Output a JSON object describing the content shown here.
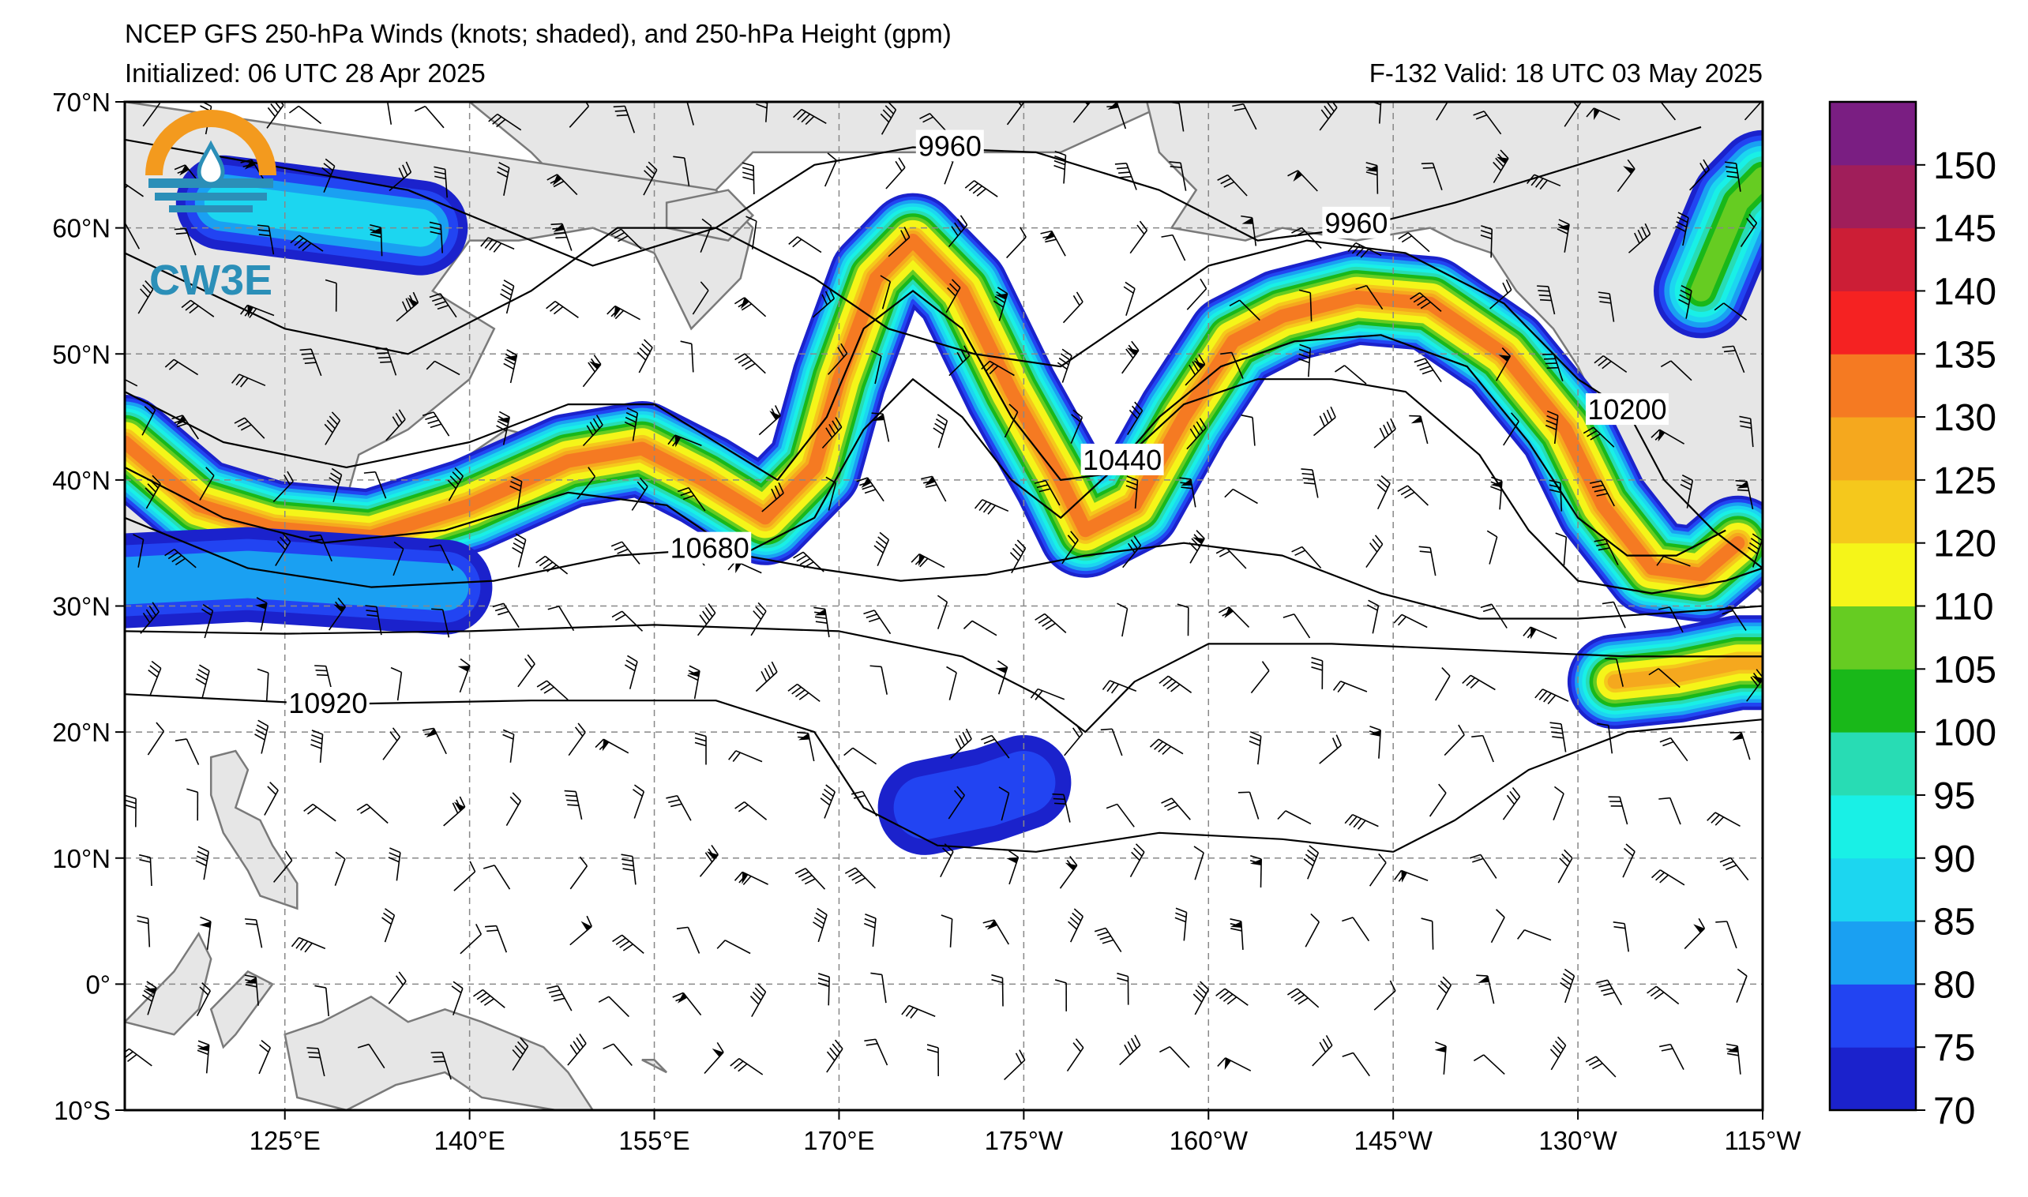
{
  "header": {
    "title": "NCEP GFS 250-hPa Winds (knots; shaded), and 250-hPa Height (gpm)",
    "initialized": "Initialized: 06 UTC 28 Apr 2025",
    "valid": "F-132  Valid: 18 UTC 03 May 2025"
  },
  "logo": {
    "text": "CW3E",
    "icon": "water-drop-sun-logo-icon"
  },
  "map": {
    "projection": "equidistant-cylindrical",
    "lon_range": [
      112,
      245
    ],
    "lat_range": [
      -10,
      70
    ],
    "grid": true,
    "lat_labels": [
      "70°N",
      "60°N",
      "50°N",
      "40°N",
      "30°N",
      "20°N",
      "10°N",
      "0°",
      "10°S"
    ],
    "lat_values": [
      70,
      60,
      50,
      40,
      30,
      20,
      10,
      0,
      -10
    ],
    "lon_labels": [
      "125°E",
      "140°E",
      "155°E",
      "170°E",
      "175°W",
      "160°W",
      "145°W",
      "130°W",
      "115°W"
    ],
    "lon_values": [
      125,
      140,
      155,
      170,
      185,
      200,
      215,
      230,
      245
    ]
  },
  "height_contours": {
    "units": "gpm",
    "labels": [
      {
        "text": "9960",
        "lon": 179,
        "lat": 66.4
      },
      {
        "text": "9960",
        "lon": 212,
        "lat": 60.3
      },
      {
        "text": "10200",
        "lon": 234,
        "lat": 45.5
      },
      {
        "text": "10440",
        "lon": 193,
        "lat": 41.5
      },
      {
        "text": "10680",
        "lon": 159.5,
        "lat": 34.5
      },
      {
        "text": "10920",
        "lon": 128.5,
        "lat": 22.2
      }
    ]
  },
  "colorbar": {
    "units": "knots",
    "bounds": [
      70,
      75,
      80,
      85,
      90,
      95,
      100,
      105,
      110,
      120,
      125,
      130,
      135,
      140,
      145,
      150,
      155
    ],
    "labels": [
      "70",
      "75",
      "80",
      "85",
      "90",
      "95",
      "100",
      "105",
      "110",
      "120",
      "125",
      "130",
      "135",
      "140",
      "145",
      "150"
    ],
    "colors": [
      "#1b22cc",
      "#2244f2",
      "#1aa0f2",
      "#1cd6f0",
      "#19f0e6",
      "#28dcb4",
      "#19b819",
      "#66cc22",
      "#f5f519",
      "#f5c81c",
      "#f5a81e",
      "#f57a22",
      "#f52222",
      "#cc1e36",
      "#a01e5a",
      "#7a1e82"
    ]
  },
  "jet_segments": [
    {
      "name": "north-pacific-jet",
      "peak": 130,
      "points": [
        [
          112,
          43
        ],
        [
          118,
          38
        ],
        [
          124,
          36.2
        ],
        [
          132,
          35.5
        ],
        [
          140,
          38
        ],
        [
          148,
          41.5
        ],
        [
          154,
          42.5
        ],
        [
          159,
          40
        ],
        [
          164,
          37
        ],
        [
          168,
          41
        ],
        [
          170,
          48
        ],
        [
          173,
          56
        ],
        [
          176,
          59
        ],
        [
          180,
          55
        ],
        [
          184,
          47
        ],
        [
          188,
          40
        ],
        [
          190,
          36
        ],
        [
          194,
          38
        ],
        [
          198,
          45
        ],
        [
          202,
          51
        ],
        [
          206,
          53
        ],
        [
          212,
          54.5
        ],
        [
          218,
          54
        ],
        [
          224,
          50
        ],
        [
          229,
          44
        ],
        [
          232,
          38
        ],
        [
          236,
          33
        ],
        [
          240,
          32.5
        ],
        [
          243,
          35
        ]
      ]
    },
    {
      "name": "western-jet-entrance",
      "peak": 85,
      "points": [
        [
          120,
          62
        ],
        [
          128,
          61
        ],
        [
          136,
          60
        ]
      ]
    },
    {
      "name": "gulf-of-alaska-branch",
      "peak": 105,
      "points": [
        [
          240,
          55
        ],
        [
          243,
          62
        ],
        [
          245,
          64
        ]
      ]
    },
    {
      "name": "subtropical-jet-west",
      "peak": 80,
      "points": [
        [
          112,
          32
        ],
        [
          122,
          32.5
        ],
        [
          130,
          32
        ],
        [
          138,
          31.5
        ]
      ]
    },
    {
      "name": "subtropical-jet-east",
      "peak": 125,
      "points": [
        [
          233,
          24
        ],
        [
          238,
          24.5
        ],
        [
          243,
          25.5
        ],
        [
          245,
          25.5
        ]
      ]
    },
    {
      "name": "tropical-jet-patch",
      "peak": 75,
      "points": [
        [
          177,
          14
        ],
        [
          182,
          15
        ],
        [
          185,
          16
        ]
      ]
    }
  ]
}
